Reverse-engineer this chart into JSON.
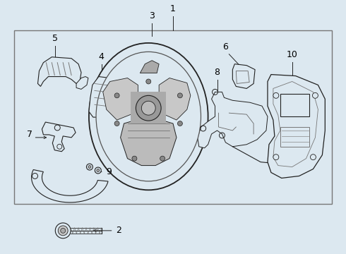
{
  "bg_color": "#dce8f0",
  "box_bg": "#dce8f0",
  "line_color": "#555555",
  "dark_line": "#222222",
  "box_edge": "#888888",
  "fig_w": 4.9,
  "fig_h": 3.6,
  "dpi": 100
}
